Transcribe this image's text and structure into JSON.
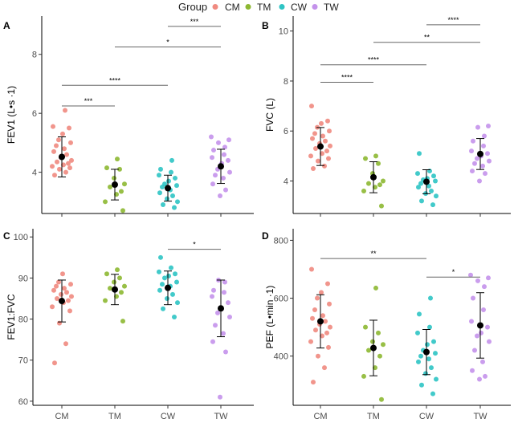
{
  "legend": {
    "title": "Group",
    "items": [
      {
        "label": "CM",
        "color": "#F08A80"
      },
      {
        "label": "TM",
        "color": "#8DB832"
      },
      {
        "label": "CW",
        "color": "#2EC4C4"
      },
      {
        "label": "TW",
        "color": "#C492EB"
      }
    ]
  },
  "chart_data": [
    {
      "panel": "A",
      "type": "scatter",
      "ylabel": "FEV1 (L•s ·1)",
      "ylim": [
        2.6,
        9.3
      ],
      "yticks": [
        4,
        6,
        8
      ],
      "categories": [
        "CM",
        "TM",
        "CW",
        "TW"
      ],
      "show_x_ticklabels": false,
      "grid": false,
      "summary": {
        "means": [
          4.52,
          3.58,
          3.46,
          4.2
        ],
        "sd": [
          0.68,
          0.52,
          0.44,
          0.58
        ]
      },
      "points": [
        [
          3.9,
          4.0,
          4.1,
          4.15,
          4.2,
          4.25,
          4.3,
          4.35,
          4.4,
          4.5,
          4.6,
          4.7,
          4.8,
          4.9,
          5.0,
          5.1,
          5.3,
          5.5,
          5.55,
          6.1
        ],
        [
          2.7,
          3.0,
          3.25,
          3.35,
          3.5,
          3.6,
          3.8,
          4.1,
          4.15,
          4.45
        ],
        [
          2.8,
          2.9,
          3.0,
          3.1,
          3.2,
          3.3,
          3.4,
          3.5,
          3.55,
          3.6,
          3.7,
          3.8,
          3.9,
          4.0,
          4.1,
          4.4
        ],
        [
          3.2,
          3.4,
          3.6,
          3.8,
          3.9,
          4.0,
          4.1,
          4.3,
          4.4,
          4.5,
          4.6,
          4.75,
          4.85,
          5.0,
          5.1,
          5.2
        ]
      ],
      "comparisons": [
        {
          "from": "CM",
          "to": "TM",
          "label": "***",
          "y": 6.25
        },
        {
          "from": "CM",
          "to": "CW",
          "label": "****",
          "y": 6.95
        },
        {
          "from": "TM",
          "to": "TW",
          "label": "*",
          "y": 8.25
        },
        {
          "from": "CW",
          "to": "TW",
          "label": "***",
          "y": 8.95
        }
      ]
    },
    {
      "panel": "B",
      "type": "scatter",
      "ylabel": "FVC (L)",
      "ylim": [
        2.7,
        10.6
      ],
      "yticks": [
        4,
        6,
        8,
        10
      ],
      "categories": [
        "CM",
        "TM",
        "CW",
        "TW"
      ],
      "show_x_ticklabels": false,
      "grid": false,
      "summary": {
        "means": [
          5.38,
          4.15,
          3.97,
          5.08
        ],
        "sd": [
          0.76,
          0.62,
          0.48,
          0.62
        ]
      },
      "points": [
        [
          4.5,
          4.6,
          4.8,
          4.9,
          5.0,
          5.1,
          5.2,
          5.3,
          5.4,
          5.5,
          5.6,
          5.7,
          5.8,
          5.9,
          6.0,
          6.15,
          6.3,
          6.4,
          7.0
        ],
        [
          3.0,
          3.6,
          3.75,
          3.85,
          3.9,
          4.0,
          4.3,
          4.7,
          4.9,
          5.0
        ],
        [
          3.05,
          3.2,
          3.4,
          3.5,
          3.6,
          3.75,
          3.8,
          3.9,
          4.0,
          4.05,
          4.1,
          4.2,
          4.3,
          4.4,
          5.1
        ],
        [
          4.0,
          4.3,
          4.4,
          4.6,
          4.7,
          4.8,
          4.9,
          5.0,
          5.1,
          5.2,
          5.4,
          5.6,
          5.8,
          6.15,
          6.2
        ]
      ],
      "comparisons": [
        {
          "from": "CM",
          "to": "TM",
          "label": "****",
          "y": 7.95
        },
        {
          "from": "CM",
          "to": "CW",
          "label": "****",
          "y": 8.65
        },
        {
          "from": "TM",
          "to": "TW",
          "label": "**",
          "y": 9.55
        },
        {
          "from": "CW",
          "to": "TW",
          "label": "****",
          "y": 10.25
        }
      ]
    },
    {
      "panel": "C",
      "type": "scatter",
      "ylabel": "FEV1:FVC",
      "ylim": [
        59,
        102
      ],
      "yticks": [
        60,
        70,
        80,
        90,
        100
      ],
      "categories": [
        "CM",
        "TM",
        "CW",
        "TW"
      ],
      "show_x_ticklabels": true,
      "grid": false,
      "summary": {
        "means": [
          84.4,
          87.2,
          87.6,
          82.6
        ],
        "sd": [
          5.1,
          3.7,
          4.1,
          6.9
        ]
      },
      "points": [
        [
          69.3,
          74.0,
          79.0,
          82.0,
          83.0,
          84.0,
          84.5,
          85.0,
          85.5,
          86.0,
          86.5,
          87.0,
          87.5,
          88.0,
          88.5,
          89.0,
          91.0
        ],
        [
          79.5,
          84.5,
          85.5,
          86.5,
          87.5,
          88.0,
          89.0,
          90.0,
          91.0,
          92.0
        ],
        [
          80.5,
          82.5,
          84.0,
          85.0,
          86.0,
          87.0,
          88.0,
          88.5,
          89.0,
          90.0,
          90.5,
          91.0,
          91.5,
          92.5,
          95.0
        ],
        [
          61.0,
          72.0,
          74.5,
          76.5,
          78.5,
          80.5,
          81.5,
          82.5,
          84.0,
          85.5,
          86.5,
          87.0,
          89.0,
          89.5
        ]
      ],
      "comparisons": [
        {
          "from": "CW",
          "to": "TW",
          "label": "*",
          "y": 97.0
        }
      ]
    },
    {
      "panel": "D",
      "type": "scatter",
      "ylabel": "PEF (L•min ·1)",
      "ylim": [
        230,
        840
      ],
      "yticks": [
        400,
        600,
        800
      ],
      "categories": [
        "CM",
        "TM",
        "CW",
        "TW"
      ],
      "show_x_ticklabels": true,
      "grid": false,
      "summary": {
        "means": [
          520,
          428,
          414,
          506
        ],
        "sd": [
          92,
          96,
          78,
          113
        ]
      },
      "points": [
        [
          310,
          360,
          400,
          430,
          450,
          470,
          480,
          490,
          500,
          510,
          520,
          530,
          540,
          560,
          580,
          600,
          620,
          650,
          700
        ],
        [
          250,
          330,
          360,
          400,
          420,
          440,
          450,
          480,
          500,
          635
        ],
        [
          270,
          300,
          320,
          340,
          360,
          380,
          390,
          400,
          410,
          420,
          440,
          450,
          480,
          500,
          545,
          600
        ],
        [
          320,
          330,
          350,
          380,
          420,
          450,
          470,
          480,
          500,
          520,
          560,
          600,
          640,
          660,
          670,
          680
        ]
      ],
      "comparisons": [
        {
          "from": "CM",
          "to": "CW",
          "label": "**",
          "y": 737
        },
        {
          "from": "CW",
          "to": "TW",
          "label": "*",
          "y": 673
        }
      ]
    }
  ]
}
